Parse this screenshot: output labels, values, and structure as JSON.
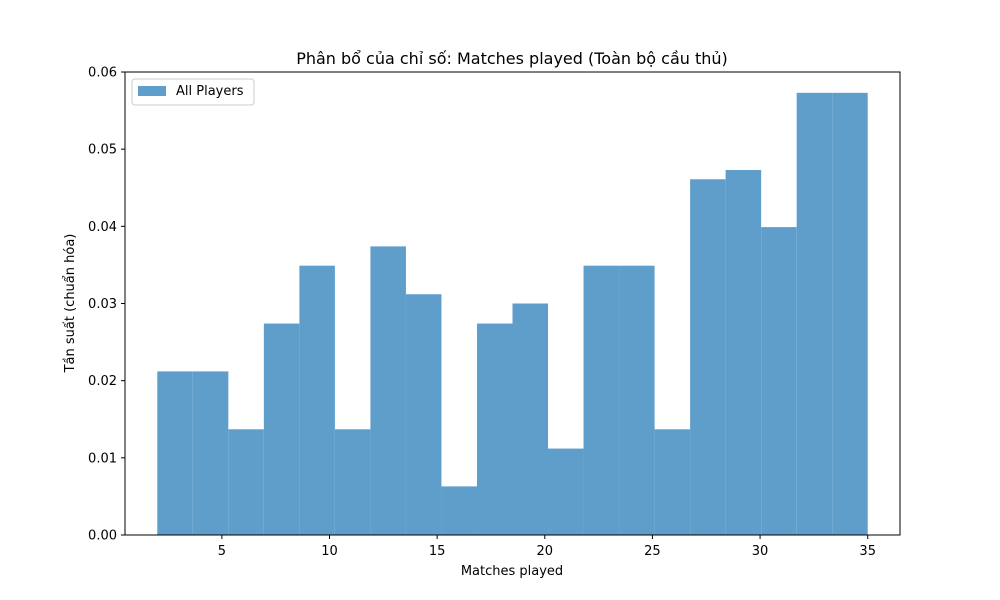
{
  "chart_data": {
    "type": "bar",
    "title": "Phân bổ của chỉ số: Matches played (Toàn bộ cầu thủ)",
    "xlabel": "Matches played",
    "ylabel": "Tần suất (chuẩn hóa)",
    "xlim": [
      0.5,
      36.5
    ],
    "ylim": [
      0,
      0.06
    ],
    "x_ticks": [
      5,
      10,
      15,
      20,
      25,
      30,
      35
    ],
    "x_tick_labels": [
      "5",
      "10",
      "15",
      "20",
      "25",
      "30",
      "35"
    ],
    "y_ticks": [
      0,
      0.01,
      0.02,
      0.03,
      0.04,
      0.05,
      0.06
    ],
    "y_tick_labels": [
      "0.00",
      "0.01",
      "0.02",
      "0.03",
      "0.04",
      "0.05",
      "0.06"
    ],
    "grid": false,
    "legend": {
      "position": "top-left",
      "entries": [
        "All Players"
      ]
    },
    "series": [
      {
        "name": "All Players",
        "color": "#5f9ecb",
        "bins": [
          {
            "start": 2.0,
            "end": 3.65,
            "value": 0.0212
          },
          {
            "start": 3.65,
            "end": 5.3,
            "value": 0.0212
          },
          {
            "start": 5.3,
            "end": 6.95,
            "value": 0.0137
          },
          {
            "start": 6.95,
            "end": 8.6,
            "value": 0.0274
          },
          {
            "start": 8.6,
            "end": 10.25,
            "value": 0.0349
          },
          {
            "start": 10.25,
            "end": 11.9,
            "value": 0.0137
          },
          {
            "start": 11.9,
            "end": 13.55,
            "value": 0.0374
          },
          {
            "start": 13.55,
            "end": 15.2,
            "value": 0.0312
          },
          {
            "start": 15.2,
            "end": 16.85,
            "value": 0.0063
          },
          {
            "start": 16.85,
            "end": 18.5,
            "value": 0.0274
          },
          {
            "start": 18.5,
            "end": 20.15,
            "value": 0.03
          },
          {
            "start": 20.15,
            "end": 21.8,
            "value": 0.0112
          },
          {
            "start": 21.8,
            "end": 23.45,
            "value": 0.0349
          },
          {
            "start": 23.45,
            "end": 25.1,
            "value": 0.0349
          },
          {
            "start": 25.1,
            "end": 26.75,
            "value": 0.0137
          },
          {
            "start": 26.75,
            "end": 28.4,
            "value": 0.0461
          },
          {
            "start": 28.4,
            "end": 30.05,
            "value": 0.0473
          },
          {
            "start": 30.05,
            "end": 31.7,
            "value": 0.0399
          },
          {
            "start": 31.7,
            "end": 33.35,
            "value": 0.0573
          },
          {
            "start": 33.35,
            "end": 35.0,
            "value": 0.0573
          }
        ]
      }
    ]
  }
}
